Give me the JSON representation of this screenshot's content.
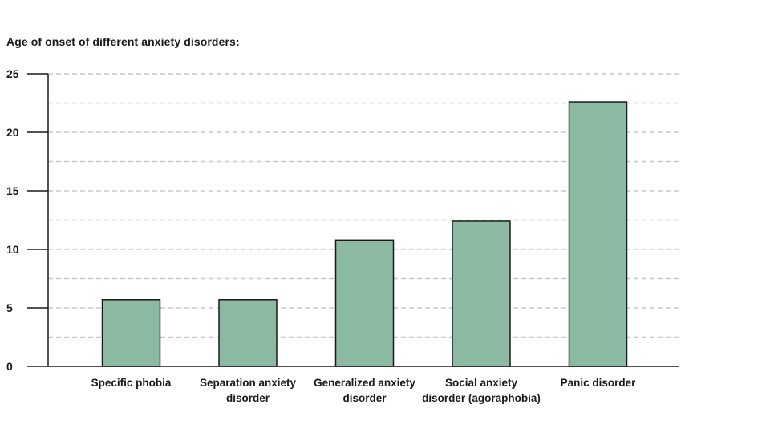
{
  "chart_data": {
    "type": "bar",
    "title": "Age of onset of different anxiety disorders:",
    "xlabel": "",
    "ylabel": "",
    "categories": [
      [
        "Specific phobia"
      ],
      [
        "Separation anxiety",
        "disorder"
      ],
      [
        "Generalized anxiety",
        "disorder"
      ],
      [
        "Social anxiety",
        "disorder (agoraphobia)"
      ],
      [
        "Panic disorder"
      ]
    ],
    "values": [
      5.7,
      5.7,
      10.8,
      12.4,
      22.6
    ],
    "ylim": [
      0,
      25
    ],
    "yticks": [
      0,
      5,
      10,
      15,
      20,
      25
    ],
    "minor_gridlines": [
      2.5,
      7.5,
      12.5,
      17.5,
      22.5
    ],
    "grid": true,
    "legend": false,
    "colors": {
      "bar_fill": "#8cb9a1",
      "bar_stroke": "#1a1a1a",
      "axis": "#1a1a1a",
      "grid": "#c8c8c8"
    }
  }
}
